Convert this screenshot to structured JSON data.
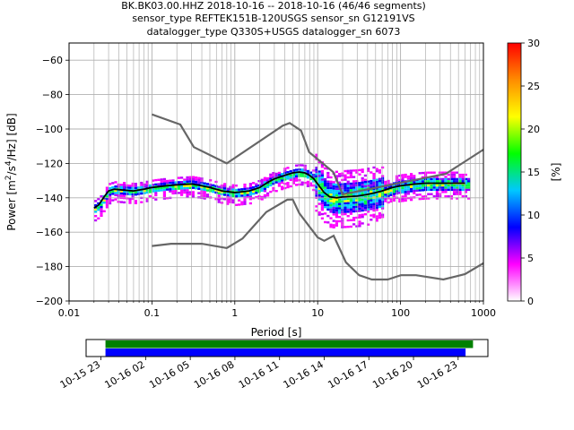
{
  "title": {
    "line1": "BK.BK03.00.HHZ   2018-10-16 -- 2018-10-16  (46/46 segments)",
    "line2": "sensor_type REFTEK151B-120USGS sensor_sn G12191VS",
    "line3": "datalogger_type Q330S+USGS datalogger_sn 6073"
  },
  "chart_data": [
    {
      "type": "heatmap",
      "title": "BK.BK03.00.HHZ   2018-10-16 -- 2018-10-16  (46/46 segments)",
      "xlabel": "Period [s]",
      "ylabel_parts": [
        "Power [m",
        "2",
        "/s",
        "4",
        "/Hz] [dB]"
      ],
      "xscale": "log",
      "xlim": [
        0.01,
        1000
      ],
      "ylim": [
        -200,
        -50
      ],
      "xticks": [
        {
          "value": 0.01,
          "label": "0.01"
        },
        {
          "value": 0.1,
          "label": "0.1"
        },
        {
          "value": 1,
          "label": "1"
        },
        {
          "value": 10,
          "label": "10"
        },
        {
          "value": 100,
          "label": "100"
        },
        {
          "value": 1000,
          "label": "1000"
        }
      ],
      "yticks": [
        {
          "value": -60,
          "label": "−60"
        },
        {
          "value": -80,
          "label": "−80"
        },
        {
          "value": -100,
          "label": "−100"
        },
        {
          "value": -120,
          "label": "−120"
        },
        {
          "value": -140,
          "label": "−140"
        },
        {
          "value": -160,
          "label": "−160"
        },
        {
          "value": -180,
          "label": "−180"
        },
        {
          "value": -200,
          "label": "−200"
        }
      ],
      "grid": true,
      "noise_models": {
        "high": [
          [
            0.1,
            -91.5
          ],
          [
            0.22,
            -97.4
          ],
          [
            0.32,
            -110.5
          ],
          [
            0.8,
            -120
          ],
          [
            3.8,
            -98
          ],
          [
            4.6,
            -96.5
          ],
          [
            6.3,
            -101
          ],
          [
            7.9,
            -113.5
          ],
          [
            15.4,
            -125
          ],
          [
            20,
            -138
          ],
          [
            354,
            -126
          ],
          [
            1000,
            -112
          ]
        ],
        "low": [
          [
            0.1,
            -168
          ],
          [
            0.17,
            -166.7
          ],
          [
            0.4,
            -166.7
          ],
          [
            0.8,
            -169.2
          ],
          [
            1.24,
            -163.7
          ],
          [
            2.4,
            -148.3
          ],
          [
            4.3,
            -141.1
          ],
          [
            5,
            -141
          ],
          [
            6,
            -149
          ],
          [
            10,
            -163
          ],
          [
            12,
            -165
          ],
          [
            15.6,
            -162.1
          ],
          [
            21.9,
            -177.5
          ],
          [
            31.6,
            -185
          ],
          [
            45,
            -187.5
          ],
          [
            70,
            -187.5
          ],
          [
            101,
            -185
          ],
          [
            154,
            -185
          ],
          [
            328,
            -187.5
          ],
          [
            600,
            -184.4
          ],
          [
            1000,
            -178
          ]
        ]
      },
      "mode_curve": [
        [
          0.02,
          -146
        ],
        [
          0.023,
          -144
        ],
        [
          0.026,
          -140
        ],
        [
          0.03,
          -136
        ],
        [
          0.035,
          -135
        ],
        [
          0.045,
          -135.5
        ],
        [
          0.06,
          -136
        ],
        [
          0.08,
          -135
        ],
        [
          0.1,
          -134
        ],
        [
          0.15,
          -133
        ],
        [
          0.2,
          -132.5
        ],
        [
          0.3,
          -132
        ],
        [
          0.4,
          -133
        ],
        [
          0.5,
          -134
        ],
        [
          0.7,
          -136
        ],
        [
          1,
          -137
        ],
        [
          1.5,
          -136
        ],
        [
          2,
          -134
        ],
        [
          2.5,
          -131
        ],
        [
          3,
          -129
        ],
        [
          4,
          -127
        ],
        [
          5,
          -125.5
        ],
        [
          6,
          -125
        ],
        [
          7,
          -125.5
        ],
        [
          8,
          -127
        ],
        [
          9,
          -129
        ],
        [
          10,
          -132
        ],
        [
          12,
          -137
        ],
        [
          14,
          -139.5
        ],
        [
          17,
          -140
        ],
        [
          20,
          -139.5
        ],
        [
          30,
          -139
        ],
        [
          40,
          -138
        ],
        [
          50,
          -137
        ],
        [
          60,
          -136
        ],
        [
          80,
          -134
        ],
        [
          100,
          -133
        ],
        [
          150,
          -132
        ],
        [
          200,
          -131.5
        ],
        [
          300,
          -131.5
        ],
        [
          400,
          -131.5
        ],
        [
          600,
          -131.5
        ]
      ],
      "colorbar": {
        "label": "[%]",
        "range": [
          0,
          30
        ],
        "ticks": [
          {
            "value": 0,
            "label": "0"
          },
          {
            "value": 5,
            "label": "5"
          },
          {
            "value": 10,
            "label": "10"
          },
          {
            "value": 15,
            "label": "15"
          },
          {
            "value": 20,
            "label": "20"
          },
          {
            "value": 25,
            "label": "25"
          },
          {
            "value": 30,
            "label": "30"
          }
        ],
        "colors": [
          "#ffffff",
          "#ff00ff",
          "#0000ff",
          "#00c8ff",
          "#00ff00",
          "#ffff00",
          "#ff8c00",
          "#ff0000"
        ]
      }
    },
    {
      "type": "timeline",
      "title": "",
      "x_start": "2018-10-15 22:00",
      "x_end": "2018-10-17 01:00",
      "x_start_hours": -2,
      "x_end_hours": 25,
      "tick_labels": [
        "10-15 23",
        "10-16 02",
        "10-16 05",
        "10-16 08",
        "10-16 11",
        "10-16 14",
        "10-16 17",
        "10-16 20",
        "10-16 23"
      ],
      "tick_hours": [
        -1,
        2,
        5,
        8,
        11,
        14,
        17,
        20,
        23
      ],
      "bars": [
        {
          "color": "#008000",
          "start_hours": -0.7,
          "end_hours": 24.0
        },
        {
          "color": "#0000ff",
          "start_hours": -0.7,
          "end_hours": 23.5
        }
      ]
    }
  ]
}
